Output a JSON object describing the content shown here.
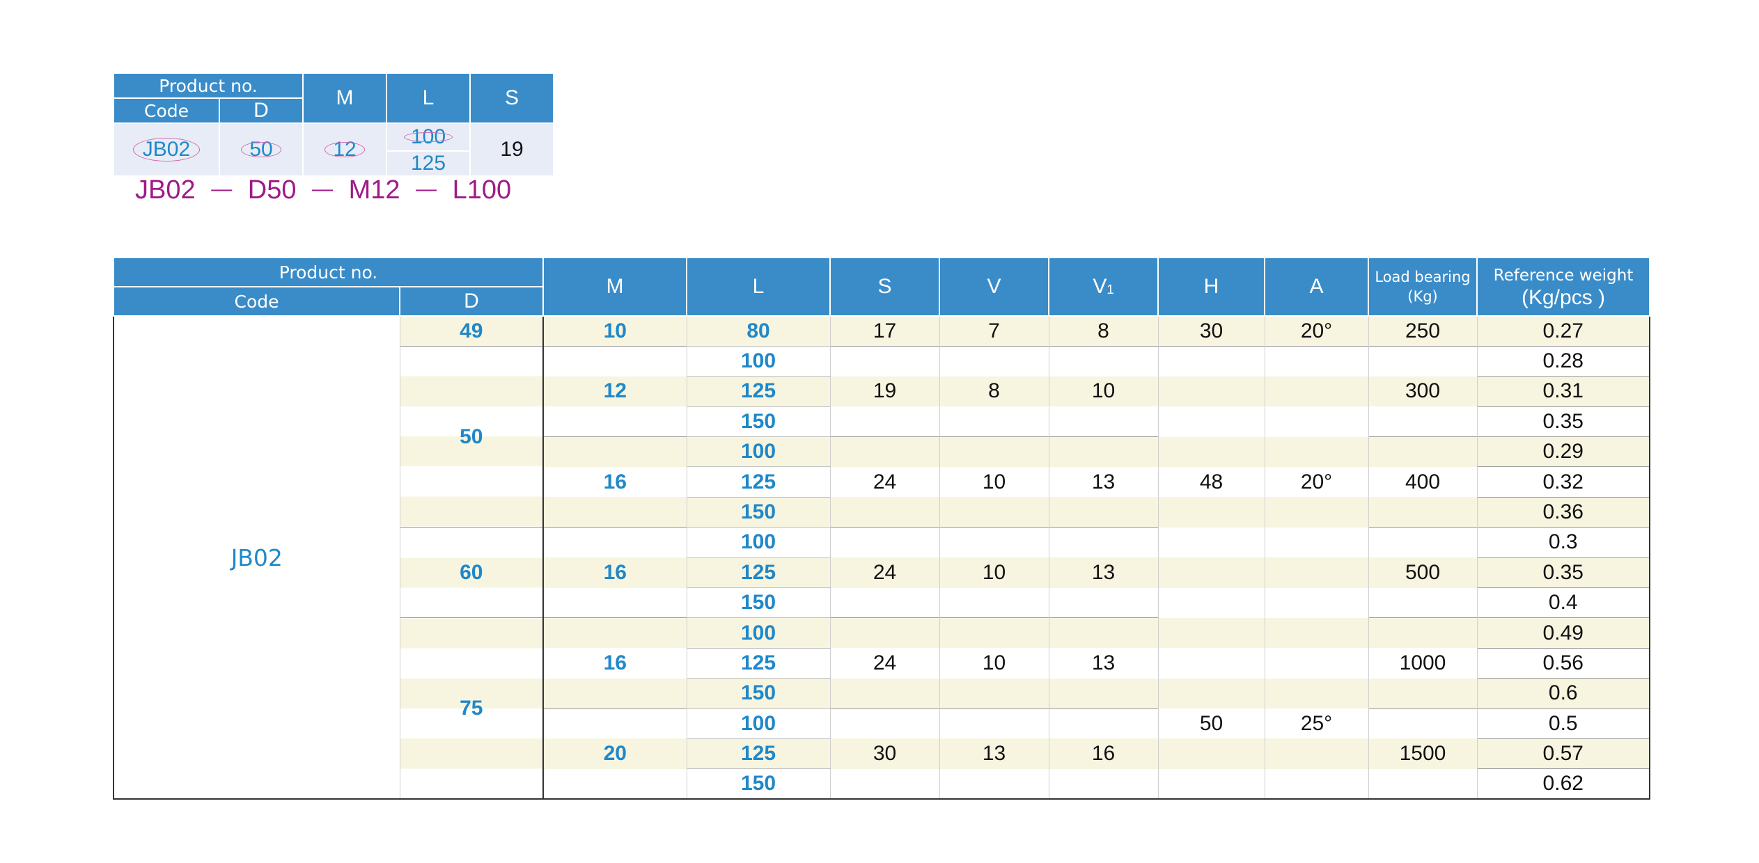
{
  "example": {
    "headers": {
      "product_no": "Product no.",
      "code": "Code",
      "d": "D",
      "m": "M",
      "l": "L",
      "s": "S"
    },
    "values": {
      "code": "JB02",
      "d": "50",
      "m": "12",
      "l_options": [
        "100",
        "125"
      ],
      "s": "19"
    },
    "formula": {
      "parts": [
        "JB02",
        "D50",
        "M12",
        "L100"
      ],
      "separator": "—"
    }
  },
  "spec": {
    "headers": {
      "product_no": "Product no.",
      "code": "Code",
      "d": "D",
      "m": "M",
      "l": "L",
      "s": "S",
      "v": "V",
      "v1_base": "V",
      "v1_sub": "1",
      "h": "H",
      "a": "A",
      "load_line1": "Load bearing",
      "load_line2": "(Kg)",
      "weight_line1": "Reference weight",
      "weight_line2": "(Kg/pcs )"
    },
    "code": "JB02",
    "d_values": [
      "49",
      "50",
      "60",
      "75"
    ],
    "m_values": [
      "10",
      "12",
      "16",
      "16",
      "16",
      "20"
    ],
    "s_values": [
      "17",
      "19",
      "24",
      "24",
      "24",
      "30"
    ],
    "v_values": [
      "7",
      "8",
      "10",
      "10",
      "10",
      "13"
    ],
    "v1_values": [
      "8",
      "10",
      "13",
      "13",
      "13",
      "16"
    ],
    "h_values": [
      "30",
      "48",
      "50"
    ],
    "a_values": [
      "20°",
      "20°",
      "25°"
    ],
    "load_values": [
      "250",
      "300",
      "400",
      "500",
      "1000",
      "1500"
    ],
    "l_values": [
      "80",
      "100",
      "125",
      "150",
      "100",
      "125",
      "150",
      "100",
      "125",
      "150",
      "100",
      "125",
      "150",
      "100",
      "125",
      "150"
    ],
    "weights": [
      "0.27",
      "0.28",
      "0.31",
      "0.35",
      "0.29",
      "0.32",
      "0.36",
      "0.3",
      "0.35",
      "0.4",
      "0.49",
      "0.56",
      "0.6",
      "0.5",
      "0.57",
      "0.62"
    ]
  }
}
